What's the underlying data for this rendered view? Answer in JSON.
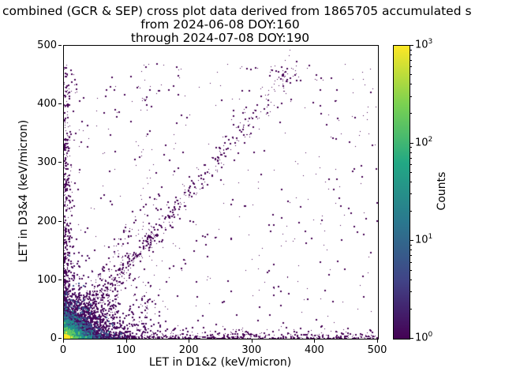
{
  "title": {
    "line1": "combined (GCR & SEP) cross plot data derived from 1865705 accumulated s",
    "line2": "from 2024-06-08 DOY:160",
    "line3": "through 2024-07-08 DOY:190"
  },
  "chart_data": {
    "type": "heatmap",
    "title": "combined (GCR & SEP) cross plot data derived from 1865705 accumulated s\nfrom 2024-06-08 DOY:160\nthrough 2024-07-08 DOY:190",
    "xlabel": "LET in D1&2 (keV/micron)",
    "ylabel": "LET in D3&4 (keV/micron)",
    "xlim": [
      0,
      500
    ],
    "ylim": [
      0,
      500
    ],
    "x_ticks": [
      0,
      100,
      200,
      300,
      400,
      500
    ],
    "y_ticks": [
      0,
      100,
      200,
      300,
      400,
      500
    ],
    "grid": false,
    "legend": "none",
    "colorbar": {
      "label": "Counts",
      "scale": "log",
      "range": [
        1,
        1000
      ],
      "tick_exponents": [
        0,
        1,
        2,
        3
      ],
      "colormap": "viridis",
      "colormap_stops": [
        "#440154",
        "#414487",
        "#2a788e",
        "#22a884",
        "#7ad151",
        "#fde725"
      ]
    },
    "distribution": {
      "description": "2D histogram of coincident LET in detector pair D1&2 vs D3&4. Bright high-count (up to ~10^3, yellow/green) hot spot at the origin below ~20 keV/micron; teal/blue halo to ~40; single-count purple speckle elsewhere. A coincidence ridge runs along y~1.25x from the origin to roughly (360,460) with widening scatter; single-detector event bands lie along both axes (x out to 500 at y~0, y up to ~460 at x~0); a sparse uniform background covers the plane with a small clump near (350,452).",
      "seed": 42,
      "clusters": [
        {
          "name": "sparse-background",
          "type": "uniform",
          "n": 420,
          "xmax": 500,
          "ymax": 470,
          "color": "#440154",
          "size": 0
        },
        {
          "name": "x-axis-single-detector-band",
          "type": "band-x",
          "n": 800,
          "my": 5,
          "xmax": 500,
          "falloff": 1.6,
          "color": "#440154",
          "size": 0
        },
        {
          "name": "y-axis-single-detector-band",
          "type": "band-y",
          "n": 650,
          "mx": 5,
          "ymax": 465,
          "falloff": 2.2,
          "color": "#440154",
          "size": 0
        },
        {
          "name": "proton-coincidence-ridge",
          "type": "diagonal",
          "n": 480,
          "slope": 1.25,
          "xmin": 5,
          "xmax": 360,
          "spread": 6,
          "falloff": 1.15,
          "color": "#440154",
          "size": 0
        },
        {
          "name": "origin-fan",
          "type": "fan",
          "n": 900,
          "mx": 45,
          "smin": 0.15,
          "smax": 2.0,
          "color": "#440154",
          "size": 0
        },
        {
          "name": "vertical-streak",
          "type": "vstreak",
          "n": 50,
          "cx": 125,
          "sx": 7,
          "ymax": 470,
          "color": "#440154",
          "size": 0
        },
        {
          "name": "upper-ridge-clump",
          "type": "gauss",
          "n": 35,
          "cx": 350,
          "cy": 452,
          "sx": 15,
          "sy": 10,
          "color": "#440154",
          "size": 0
        },
        {
          "name": "origin-halo-purple",
          "type": "exp2d",
          "n": 1600,
          "mx": 30,
          "my": 26,
          "color": "#46085c",
          "size": 2
        },
        {
          "name": "origin-blue",
          "type": "exp2d",
          "n": 1100,
          "mx": 16,
          "my": 14,
          "color": "#3b528b",
          "size": 2
        },
        {
          "name": "origin-teal",
          "type": "exp2d",
          "n": 900,
          "mx": 9,
          "my": 8,
          "color": "#21918c",
          "size": 2
        },
        {
          "name": "origin-green",
          "type": "exp2d",
          "n": 700,
          "mx": 4,
          "my": 3.5,
          "color": "#5ec962",
          "size": 2
        },
        {
          "name": "origin-core-yellow",
          "type": "exp2d",
          "n": 500,
          "mx": 1.5,
          "my": 1.5,
          "color": "#fde725",
          "size": 2
        }
      ]
    }
  }
}
